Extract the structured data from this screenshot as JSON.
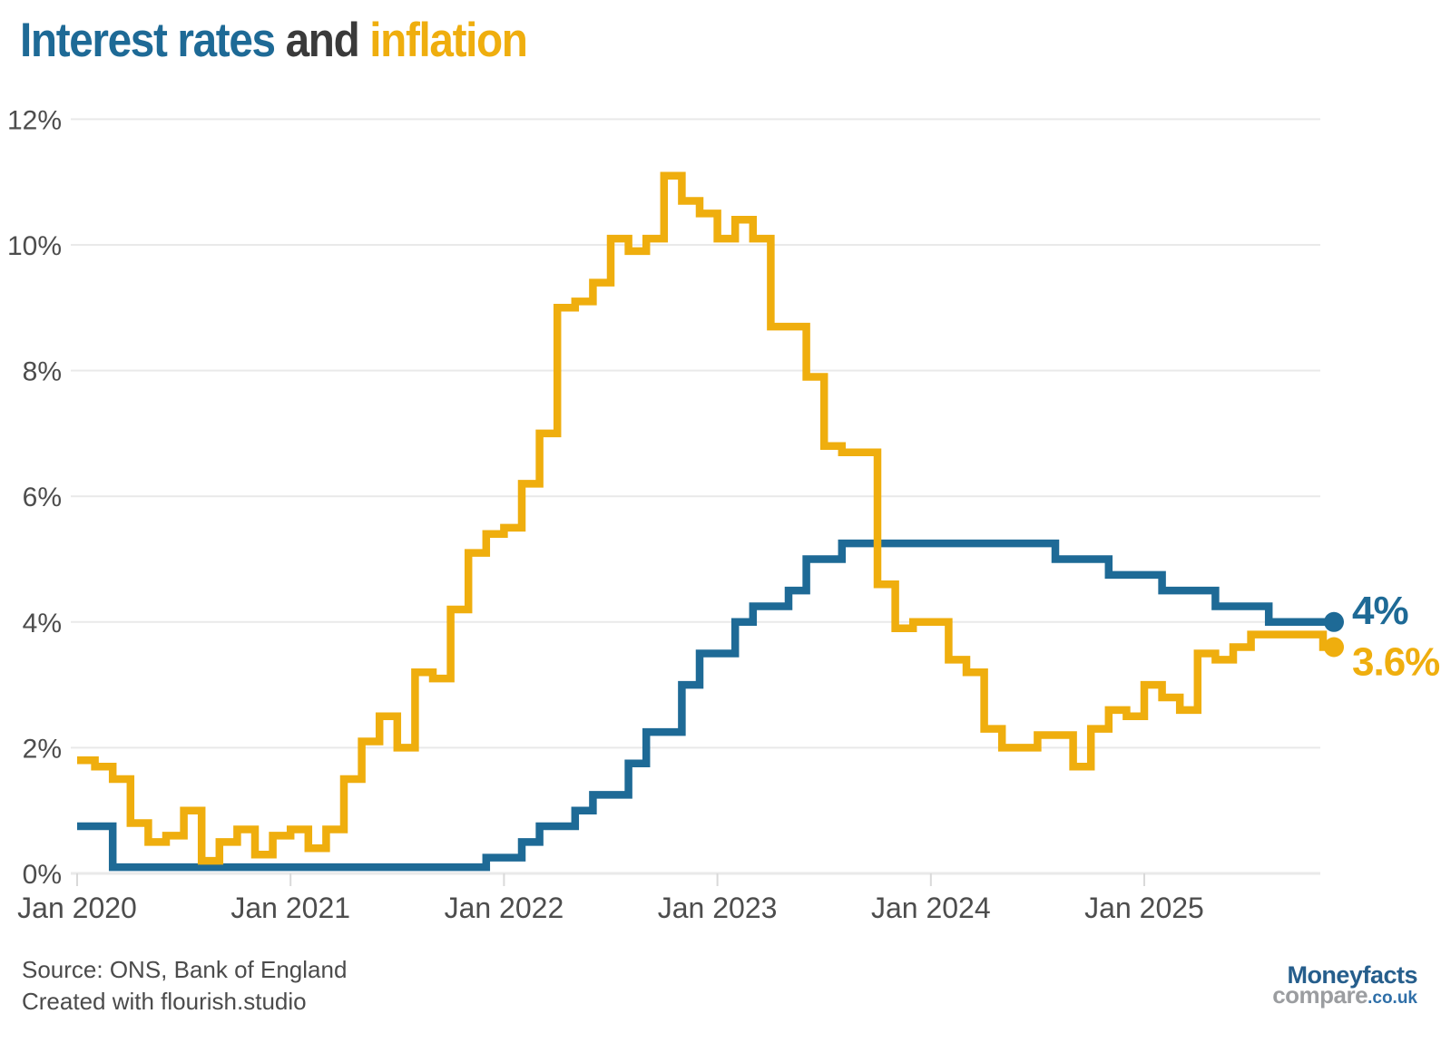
{
  "title": {
    "part1": "Interest rates",
    "part2": " and ",
    "part3": "inflation"
  },
  "colors": {
    "rates_blue": "#1E6A96",
    "inflation_yellow": "#EFAE0E",
    "grid": "#E9E9E9",
    "tick": "#D9D9D9",
    "axis_text": "#4D4D4D"
  },
  "chart_data": {
    "type": "line",
    "step": true,
    "grid": "horizontal",
    "x_unit": "month",
    "x_range": [
      "Jan 2020",
      "Nov 2025"
    ],
    "ylim": [
      0,
      12
    ],
    "y_ticks": [
      {
        "value": 0,
        "label": "0%"
      },
      {
        "value": 2,
        "label": "2%"
      },
      {
        "value": 4,
        "label": "4%"
      },
      {
        "value": 6,
        "label": "6%"
      },
      {
        "value": 8,
        "label": "8%"
      },
      {
        "value": 10,
        "label": "10%"
      },
      {
        "value": 12,
        "label": "12%"
      }
    ],
    "x_ticks": [
      {
        "month_index": 0,
        "label": "Jan 2020"
      },
      {
        "month_index": 12,
        "label": "Jan 2021"
      },
      {
        "month_index": 24,
        "label": "Jan 2022"
      },
      {
        "month_index": 36,
        "label": "Jan 2023"
      },
      {
        "month_index": 48,
        "label": "Jan 2024"
      },
      {
        "month_index": 60,
        "label": "Jan 2025"
      }
    ],
    "series": [
      {
        "name": "Interest rates",
        "color": "#1E6A96",
        "end_label": "4%",
        "start_month": "Jan 2020",
        "values": [
          0.75,
          0.75,
          0.1,
          0.1,
          0.1,
          0.1,
          0.1,
          0.1,
          0.1,
          0.1,
          0.1,
          0.1,
          0.1,
          0.1,
          0.1,
          0.1,
          0.1,
          0.1,
          0.1,
          0.1,
          0.1,
          0.1,
          0.1,
          0.25,
          0.25,
          0.5,
          0.75,
          0.75,
          1.0,
          1.25,
          1.25,
          1.75,
          2.25,
          2.25,
          3.0,
          3.5,
          3.5,
          4.0,
          4.25,
          4.25,
          4.5,
          5.0,
          5.0,
          5.25,
          5.25,
          5.25,
          5.25,
          5.25,
          5.25,
          5.25,
          5.25,
          5.25,
          5.25,
          5.25,
          5.25,
          5.0,
          5.0,
          5.0,
          4.75,
          4.75,
          4.75,
          4.5,
          4.5,
          4.5,
          4.25,
          4.25,
          4.25,
          4.0,
          4.0,
          4.0,
          4.0
        ]
      },
      {
        "name": "Inflation",
        "color": "#EFAE0E",
        "end_label": "3.6%",
        "start_month": "Jan 2020",
        "values": [
          1.8,
          1.7,
          1.5,
          0.8,
          0.5,
          0.6,
          1.0,
          0.2,
          0.5,
          0.7,
          0.3,
          0.6,
          0.7,
          0.4,
          0.7,
          1.5,
          2.1,
          2.5,
          2.0,
          3.2,
          3.1,
          4.2,
          5.1,
          5.4,
          5.5,
          6.2,
          7.0,
          9.0,
          9.1,
          9.4,
          10.1,
          9.9,
          10.1,
          11.1,
          10.7,
          10.5,
          10.1,
          10.4,
          10.1,
          8.7,
          8.7,
          7.9,
          6.8,
          6.7,
          6.7,
          4.6,
          3.9,
          4.0,
          4.0,
          3.4,
          3.2,
          2.3,
          2.0,
          2.0,
          2.2,
          2.2,
          1.7,
          2.3,
          2.6,
          2.5,
          3.0,
          2.8,
          2.6,
          3.5,
          3.4,
          3.6,
          3.8,
          3.8,
          3.8,
          3.6
        ]
      }
    ]
  },
  "footer": {
    "source_line1": "Source: ONS, Bank of England",
    "source_line2": "Created with flourish.studio"
  },
  "logo": {
    "line1": "Moneyfacts",
    "line2_part1": "compare",
    "line2_part2": ".co.uk"
  }
}
